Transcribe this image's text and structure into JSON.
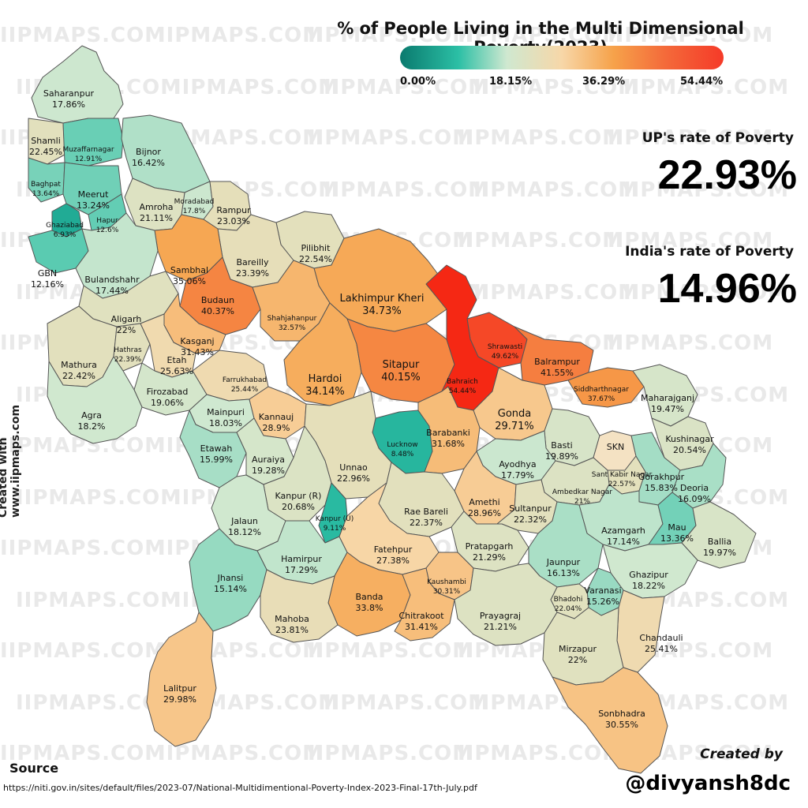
{
  "title": "% of People Living in the Multi Dimensional Poverty(2023)",
  "legend": {
    "labels": [
      "0.00%",
      "18.15%",
      "36.29%",
      "54.44%"
    ],
    "colors": [
      "#0a7a6e",
      "#2bbfa5",
      "#cfe8d0",
      "#f7d7a8",
      "#f6a24a",
      "#f46a3a",
      "#f53a28"
    ]
  },
  "up": {
    "label": "UP's rate of Poverty",
    "value": "22.93%"
  },
  "india": {
    "label": "India's rate of Poverty",
    "value": "14.96%"
  },
  "watermark": "IIPMAPS.COM",
  "credit_side": "Created with www.iipmaps.com",
  "created_by": "Created by",
  "handle": "@divyansh8dc",
  "source": {
    "label": "Source",
    "url": "https://niti.gov.in/sites/default/files/2023-07/National-Multidimentional-Poverty-Index-2023-Final-17th-July.pdf"
  },
  "districts": [
    {
      "name": "Saharanpur",
      "value": "17.86%"
    },
    {
      "name": "Shamli",
      "value": "22.45%"
    },
    {
      "name": "Muzaffarnagar",
      "value": "12.91%"
    },
    {
      "name": "Bijnor",
      "value": "16.42%"
    },
    {
      "name": "Baghpat",
      "value": "13.64%"
    },
    {
      "name": "Meerut",
      "value": "13.24%"
    },
    {
      "name": "Moradabad",
      "value": "17.8%"
    },
    {
      "name": "Rampur",
      "value": "23.03%"
    },
    {
      "name": "Amroha",
      "value": "21.11%"
    },
    {
      "name": "Ghaziabad",
      "value": "6.93%"
    },
    {
      "name": "Hapur",
      "value": "12.6%"
    },
    {
      "name": "Pilibhit",
      "value": "22.54%"
    },
    {
      "name": "Bareilly",
      "value": "23.39%"
    },
    {
      "name": "Sambhal",
      "value": "35.06%"
    },
    {
      "name": "GBN",
      "value": "12.16%"
    },
    {
      "name": "Bulandshahr",
      "value": "17.44%"
    },
    {
      "name": "Budaun",
      "value": "40.37%"
    },
    {
      "name": "Lakhimpur Kheri",
      "value": "34.73%"
    },
    {
      "name": "Shahjahanpur",
      "value": "32.57%"
    },
    {
      "name": "Aligarh",
      "value": "22%"
    },
    {
      "name": "Kasganj",
      "value": "31.43%"
    },
    {
      "name": "Shrawasti",
      "value": "49.62%"
    },
    {
      "name": "Mathura",
      "value": "22.42%"
    },
    {
      "name": "Hathras",
      "value": "22.39%"
    },
    {
      "name": "Etah",
      "value": "25.63%"
    },
    {
      "name": "Hardoi",
      "value": "34.14%"
    },
    {
      "name": "Sitapur",
      "value": "40.15%"
    },
    {
      "name": "Bahraich",
      "value": "54.44%"
    },
    {
      "name": "Balrampur",
      "value": "41.55%"
    },
    {
      "name": "Farrukhabad",
      "value": "25.44%"
    },
    {
      "name": "Siddharthnagar",
      "value": "37.67%"
    },
    {
      "name": "Firozabad",
      "value": "19.06%"
    },
    {
      "name": "Mainpuri",
      "value": "18.03%"
    },
    {
      "name": "Agra",
      "value": "18.2%"
    },
    {
      "name": "Gonda",
      "value": "29.71%"
    },
    {
      "name": "Maharajganj",
      "value": "19.47%"
    },
    {
      "name": "Kannauj",
      "value": "28.9%"
    },
    {
      "name": "Lucknow",
      "value": "8.48%"
    },
    {
      "name": "Barabanki",
      "value": "31.68%"
    },
    {
      "name": "Etawah",
      "value": "15.99%"
    },
    {
      "name": "Basti",
      "value": "19.89%"
    },
    {
      "name": "SKN",
      "value": ""
    },
    {
      "name": "Kushinagar",
      "value": "20.54%"
    },
    {
      "name": "Auraiya",
      "value": "19.28%"
    },
    {
      "name": "Unnao",
      "value": "22.96%"
    },
    {
      "name": "Ayodhya",
      "value": "17.79%"
    },
    {
      "name": "Sant Kabir Nagar",
      "value": "22.57%"
    },
    {
      "name": "Gorakhpur",
      "value": "15.83%"
    },
    {
      "name": "Ambedkar Nagar",
      "value": "21%"
    },
    {
      "name": "Kanpur (R)",
      "value": "20.68%"
    },
    {
      "name": "Amethi",
      "value": "28.96%"
    },
    {
      "name": "Deoria",
      "value": "16.09%"
    },
    {
      "name": "Kanpur (U)",
      "value": "9.11%"
    },
    {
      "name": "Rae Bareli",
      "value": "22.37%"
    },
    {
      "name": "Sultanpur",
      "value": "22.32%"
    },
    {
      "name": "Jalaun",
      "value": "18.12%"
    },
    {
      "name": "Azamgarh",
      "value": "17.14%"
    },
    {
      "name": "Mau",
      "value": "13.36%"
    },
    {
      "name": "Ballia",
      "value": "19.97%"
    },
    {
      "name": "Pratapgarh",
      "value": "21.29%"
    },
    {
      "name": "Hamirpur",
      "value": "17.29%"
    },
    {
      "name": "Fatehpur",
      "value": "27.38%"
    },
    {
      "name": "Jhansi",
      "value": "15.14%"
    },
    {
      "name": "Jaunpur",
      "value": "16.13%"
    },
    {
      "name": "Ghazipur",
      "value": "18.22%"
    },
    {
      "name": "Kaushambi",
      "value": "30.31%"
    },
    {
      "name": "Varanasi",
      "value": "15.26%"
    },
    {
      "name": "Banda",
      "value": "33.8%"
    },
    {
      "name": "Bhadohi",
      "value": "22.04%"
    },
    {
      "name": "Chitrakoot",
      "value": "31.41%"
    },
    {
      "name": "Prayagraj",
      "value": "21.21%"
    },
    {
      "name": "Mahoba",
      "value": "23.81%"
    },
    {
      "name": "Chandauli",
      "value": "25.41%"
    },
    {
      "name": "Mirzapur",
      "value": "22%"
    },
    {
      "name": "Lalitpur",
      "value": "29.98%"
    },
    {
      "name": "Sonbhadra",
      "value": "30.55%"
    }
  ]
}
